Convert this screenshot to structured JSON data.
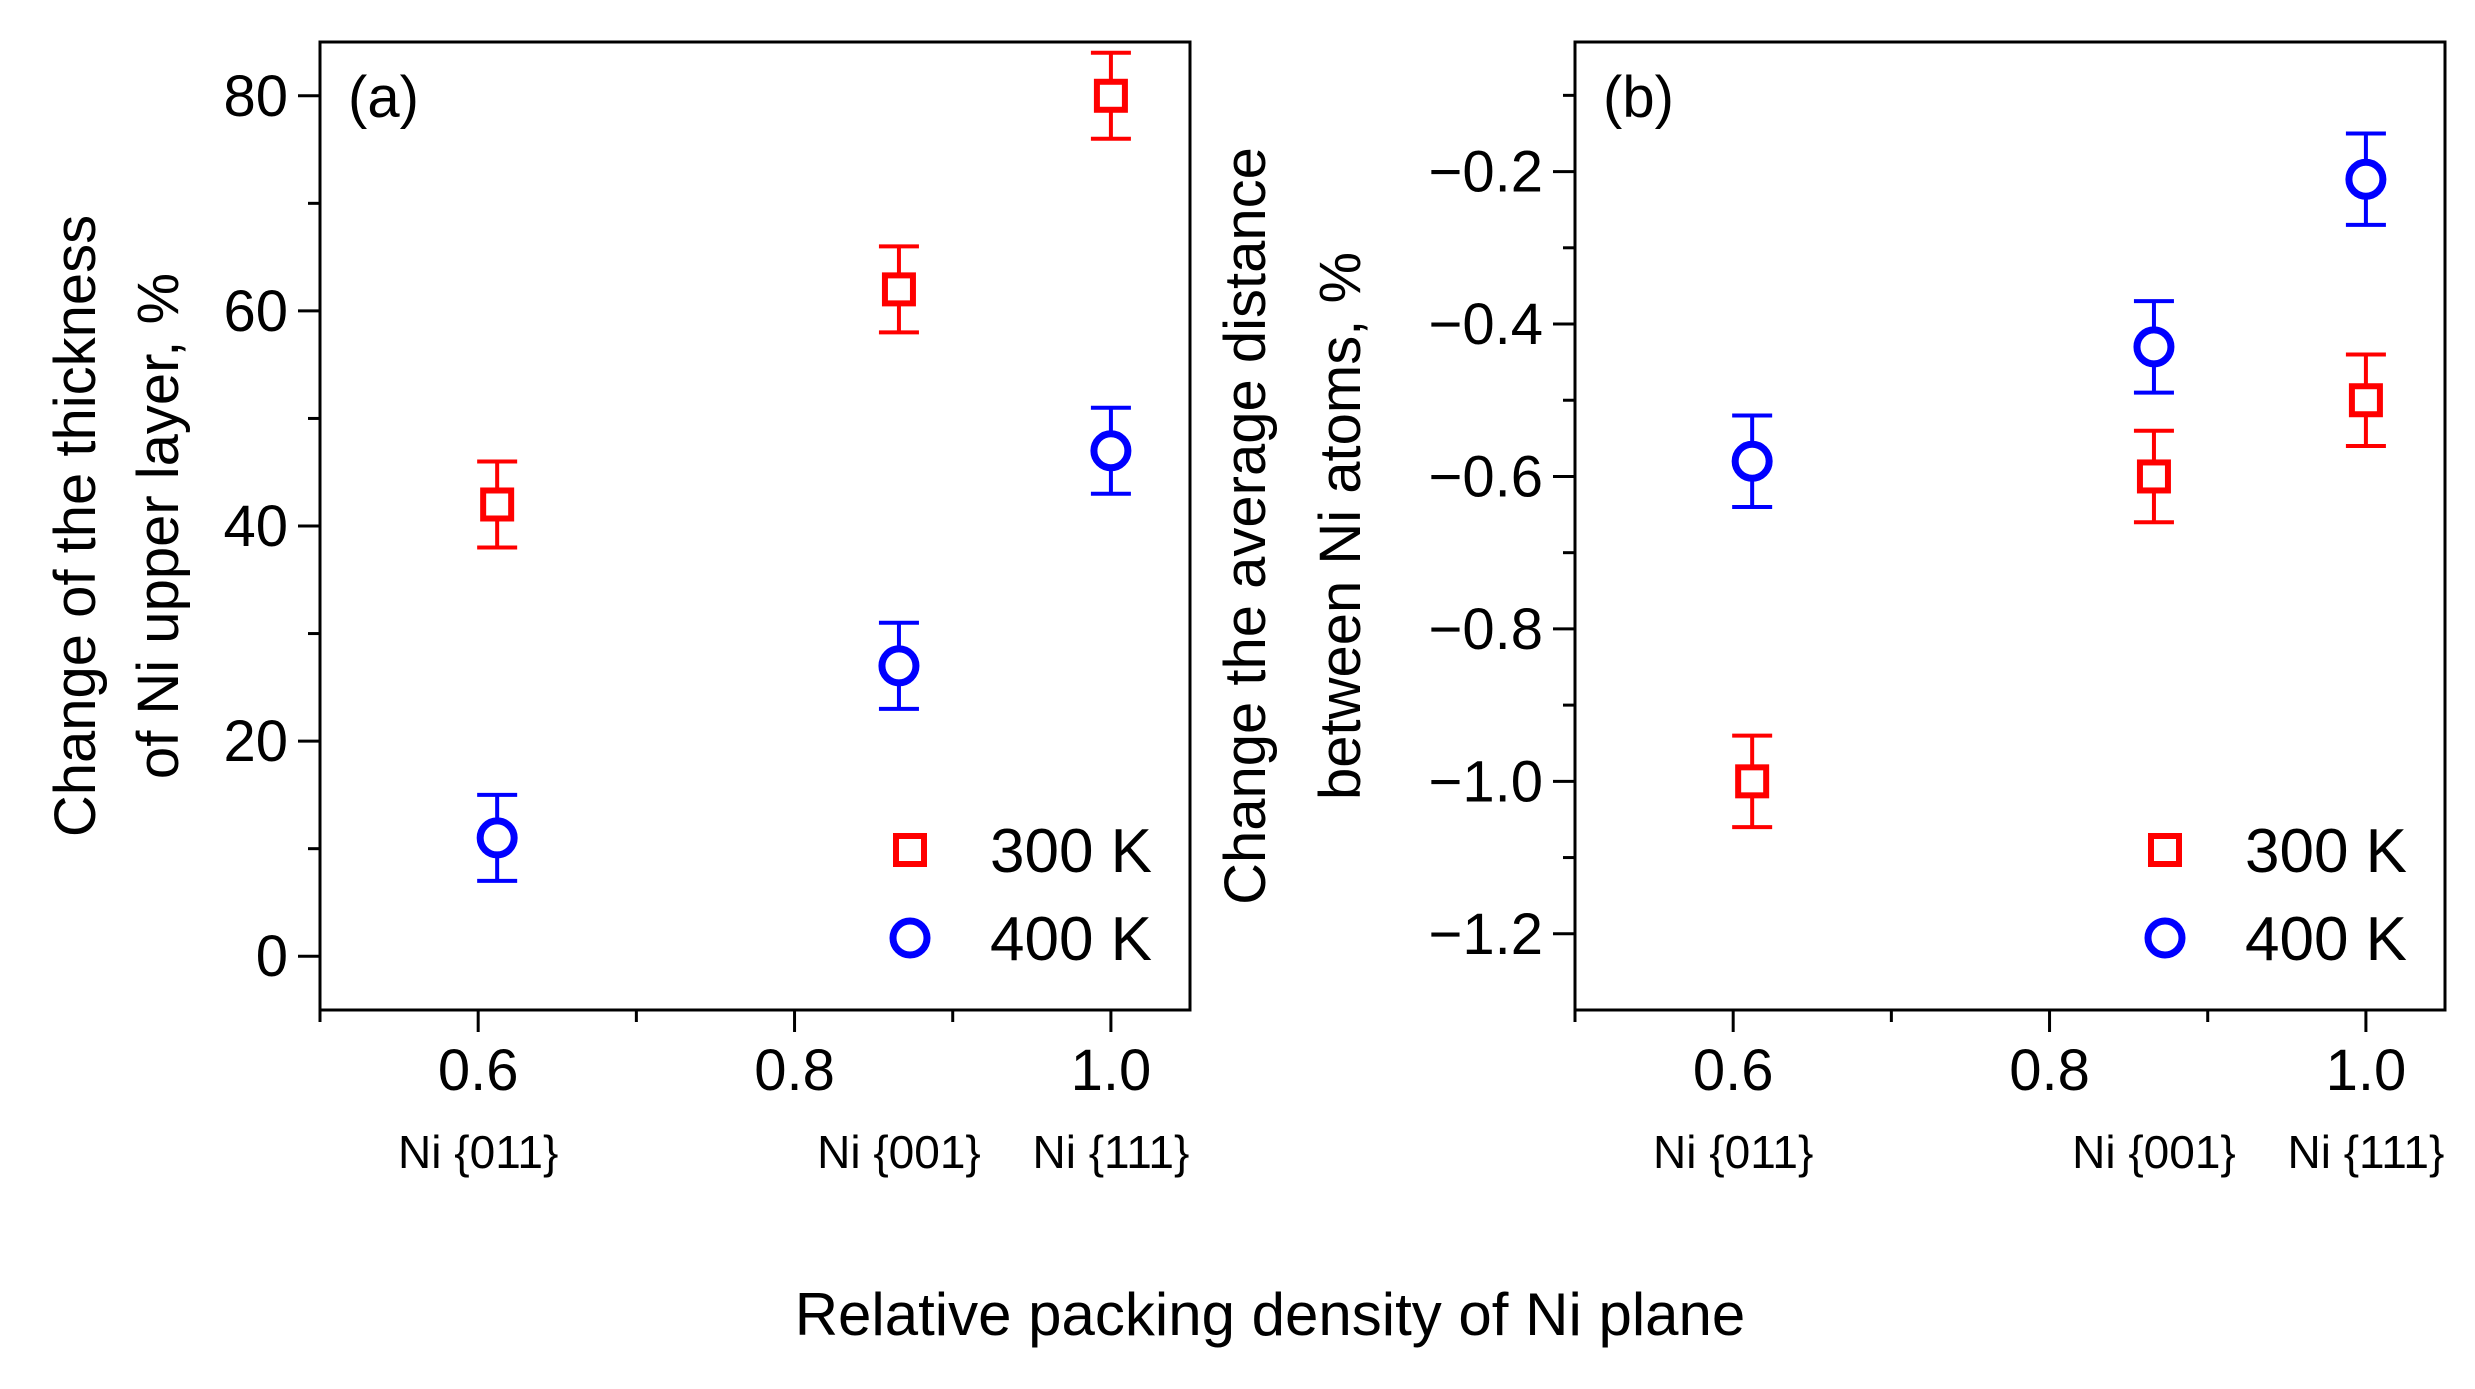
{
  "figure": {
    "xlabel_common": "Relative packing density of Ni plane"
  },
  "chart_data": [
    {
      "type": "scatter",
      "panel_label": "(a)",
      "ylabel_lines": [
        "Change of the thickness",
        "of Ni upper layer, %"
      ],
      "xlim": [
        0.5,
        1.05
      ],
      "ylim": [
        -5,
        85
      ],
      "xticks": [
        0.6,
        0.8,
        1.0
      ],
      "xtick_labels": [
        "0.6",
        "0.8",
        "1.0"
      ],
      "yticks": [
        0,
        20,
        40,
        60,
        80
      ],
      "ytick_labels": [
        "0",
        "20",
        "40",
        "60",
        "80"
      ],
      "plane_labels": [
        {
          "x": 0.6,
          "label": "Ni {011}"
        },
        {
          "x": 0.866,
          "label": "Ni {001}"
        },
        {
          "x": 1.0,
          "label": "Ni {111}"
        }
      ],
      "series": [
        {
          "name": "300 K",
          "marker": "square",
          "color": "#ff0000",
          "points": [
            {
              "x": 0.612,
              "y": 42,
              "err": 4
            },
            {
              "x": 0.866,
              "y": 62,
              "err": 4
            },
            {
              "x": 1.0,
              "y": 80,
              "err": 4
            }
          ]
        },
        {
          "name": "400 K",
          "marker": "circle",
          "color": "#0000ff",
          "points": [
            {
              "x": 0.612,
              "y": 11,
              "err": 4
            },
            {
              "x": 0.866,
              "y": 27,
              "err": 4
            },
            {
              "x": 1.0,
              "y": 47,
              "err": 4
            }
          ]
        }
      ],
      "legend": [
        "300 K",
        "400 K"
      ],
      "legend_position": "bottom-right"
    },
    {
      "type": "scatter",
      "panel_label": "(b)",
      "ylabel_lines": [
        "Change the average distance",
        "between Ni atoms, %"
      ],
      "xlim": [
        0.5,
        1.05
      ],
      "ylim": [
        -1.3,
        -0.03
      ],
      "xticks": [
        0.6,
        0.8,
        1.0
      ],
      "xtick_labels": [
        "0.6",
        "0.8",
        "1.0"
      ],
      "yticks": [
        -1.2,
        -1.0,
        -0.8,
        -0.6,
        -0.4,
        -0.2
      ],
      "ytick_labels": [
        "−1.2",
        "−1.0",
        "−0.8",
        "−0.6",
        "−0.4",
        "−0.2"
      ],
      "plane_labels": [
        {
          "x": 0.6,
          "label": "Ni {011}"
        },
        {
          "x": 0.866,
          "label": "Ni {001}"
        },
        {
          "x": 1.0,
          "label": "Ni {111}"
        }
      ],
      "series": [
        {
          "name": "300 K",
          "marker": "square",
          "color": "#ff0000",
          "points": [
            {
              "x": 0.612,
              "y": -1.0,
              "err": 0.06
            },
            {
              "x": 0.866,
              "y": -0.6,
              "err": 0.06
            },
            {
              "x": 1.0,
              "y": -0.5,
              "err": 0.06
            }
          ]
        },
        {
          "name": "400 K",
          "marker": "circle",
          "color": "#0000ff",
          "points": [
            {
              "x": 0.612,
              "y": -0.58,
              "err": 0.06
            },
            {
              "x": 0.866,
              "y": -0.43,
              "err": 0.06
            },
            {
              "x": 1.0,
              "y": -0.21,
              "err": 0.06
            }
          ]
        }
      ],
      "legend": [
        "300 K",
        "400 K"
      ],
      "legend_position": "bottom-right"
    }
  ]
}
